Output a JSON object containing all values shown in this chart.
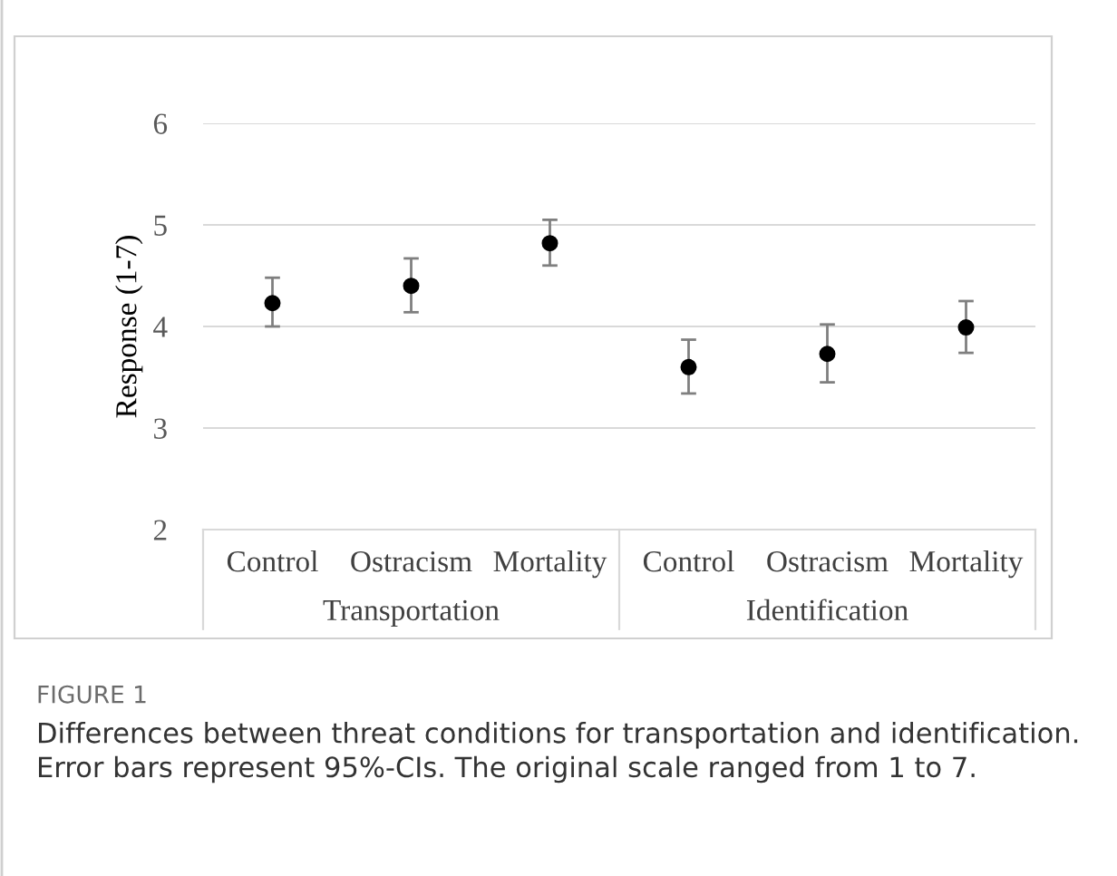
{
  "chart_data": {
    "type": "scatter",
    "ylabel": "Response (1-7)",
    "categories": [
      "Control",
      "Ostracism",
      "Mortality",
      "Control",
      "Ostracism",
      "Mortality"
    ],
    "series": [
      {
        "color": "#000000",
        "values": [
          4.23,
          4.4,
          4.82,
          3.6,
          3.73,
          3.99
        ],
        "errors": [
          [
            4.0,
            4.48
          ],
          [
            4.14,
            4.67
          ],
          [
            4.6,
            5.05
          ],
          [
            3.34,
            3.87
          ],
          [
            3.45,
            4.02
          ],
          [
            3.74,
            4.25
          ]
        ]
      }
    ],
    "ylim": [
      2,
      6
    ],
    "yticks": [
      2,
      3,
      4,
      5,
      6
    ],
    "grid": "y",
    "marker": "circle",
    "annotations": [
      "Transportation",
      "Identification",
      "FIGURE 1",
      "Differences between threat conditions for transportation and identification. Error bars represent 95%-CIs. The original scale ranged from 1 to 7."
    ]
  }
}
